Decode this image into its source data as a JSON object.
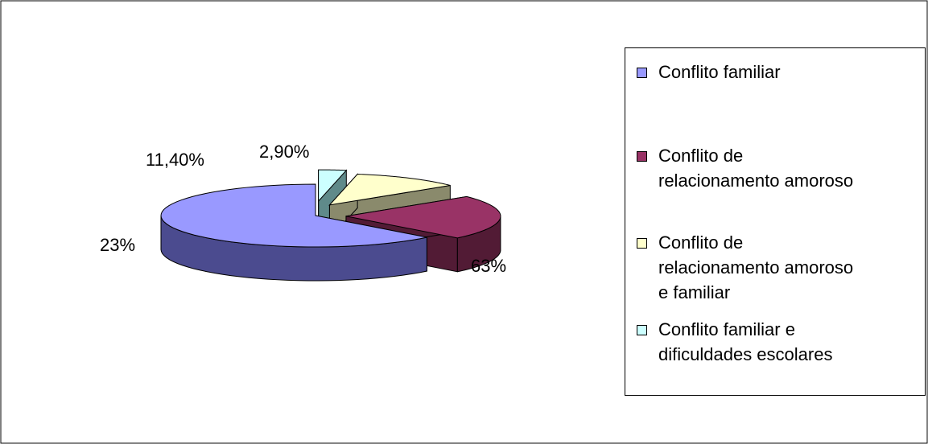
{
  "chart_data": {
    "type": "pie",
    "style": "3d-exploded",
    "title": "",
    "slices": [
      {
        "label": "Conflito familiar",
        "value": 63,
        "display": "63%",
        "color": "#9999ff",
        "side_color": "#4b4b8f"
      },
      {
        "label": "Conflito de relacionamento amoroso",
        "value": 23,
        "display": "23%",
        "color": "#993366",
        "side_color": "#521b35"
      },
      {
        "label": "Conflito de relacionamento amoroso e familiar",
        "value": 11.4,
        "display": "11,40%",
        "color": "#ffffcc",
        "side_color": "#8a8a6c"
      },
      {
        "label": "Conflito familiar e dificuldades escolares",
        "value": 2.9,
        "display": "2,90%",
        "color": "#ccffff",
        "side_color": "#5f8a8a"
      }
    ],
    "legend": {
      "position": "right",
      "entries": [
        "Conflito familiar",
        "Conflito de\nrelacionamento amoroso",
        "Conflito de\nrelacionamento amoroso\ne familiar",
        "Conflito familiar e\ndificuldades escolares"
      ]
    }
  }
}
